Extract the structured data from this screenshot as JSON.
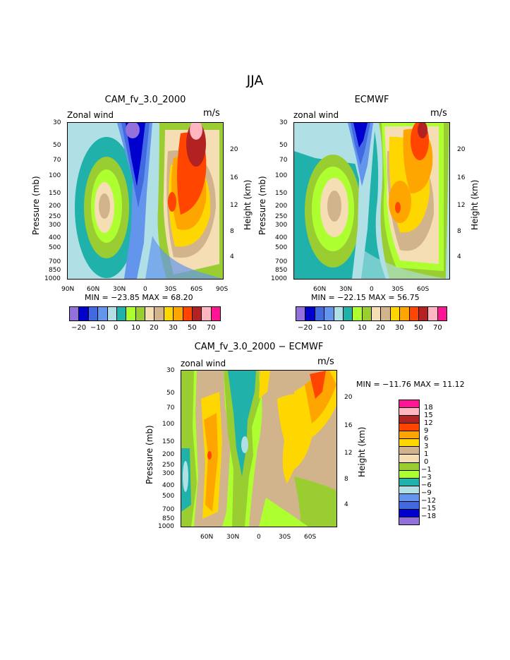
{
  "title": "JJA",
  "colors": {
    "abs": [
      "#9370db",
      "#0000cd",
      "#4169e1",
      "#6495ed",
      "#b0e0e6",
      "#20b2aa",
      "#adff2f",
      "#9acd32",
      "#f5deb3",
      "#d2b48c",
      "#ffd700",
      "#ffa500",
      "#ff4500",
      "#b22222",
      "#ffb6c1",
      "#ff1493"
    ],
    "diff": [
      "#ff1493",
      "#ffb6c1",
      "#b22222",
      "#ff4500",
      "#ffa500",
      "#ffd700",
      "#d2b48c",
      "#f5deb3",
      "#9acd32",
      "#adff2f",
      "#20b2aa",
      "#b0e0e6",
      "#6495ed",
      "#4169e1",
      "#0000cd",
      "#9370db"
    ]
  },
  "chart_data": [
    {
      "type": "heatmap",
      "title": "CAM_fv_3.0_2000",
      "left_label": "Zonal wind",
      "right_label": "m/s",
      "ylabel": "Pressure (mb)",
      "ylabel_right": "Height (km)",
      "y_ticks": [
        "30",
        "50",
        "70",
        "100",
        "150",
        "200",
        "250",
        "300",
        "400",
        "500",
        "700",
        "850",
        "1000"
      ],
      "y_ticks_right": [
        "20",
        "16",
        "12",
        "8",
        "4"
      ],
      "x_ticks": [
        "90N",
        "60N",
        "30N",
        "0",
        "30S",
        "60S",
        "90S"
      ],
      "stats": "MIN = −23.85   MAX =  68.20",
      "colorbar_labels": [
        "−20",
        "−10",
        "0",
        "10",
        "20",
        "30",
        "50",
        "70"
      ]
    },
    {
      "type": "heatmap",
      "title": "ECMWF",
      "left_label": "zonal wind",
      "right_label": "m/s",
      "ylabel": "Pressure (mb)",
      "ylabel_right": "Height (km)",
      "y_ticks": [
        "30",
        "50",
        "70",
        "100",
        "150",
        "200",
        "250",
        "300",
        "400",
        "500",
        "700",
        "850",
        "1000"
      ],
      "y_ticks_right": [
        "20",
        "16",
        "12",
        "8",
        "4"
      ],
      "x_ticks": [
        "60N",
        "30N",
        "0",
        "30S",
        "60S"
      ],
      "stats": "MIN = −22.15   MAX =  56.75",
      "colorbar_labels": [
        "−20",
        "−10",
        "0",
        "10",
        "20",
        "30",
        "50",
        "70"
      ]
    },
    {
      "type": "heatmap",
      "title": "CAM_fv_3.0_2000 − ECMWF",
      "left_label": "zonal wind",
      "right_label": "m/s",
      "ylabel": "Pressure (mb)",
      "ylabel_right": "Height (km)",
      "y_ticks": [
        "30",
        "50",
        "70",
        "100",
        "150",
        "200",
        "250",
        "300",
        "400",
        "500",
        "700",
        "850",
        "1000"
      ],
      "y_ticks_right": [
        "20",
        "16",
        "12",
        "8",
        "4"
      ],
      "x_ticks": [
        "60N",
        "30N",
        "0",
        "30S",
        "60S"
      ],
      "stats": "MIN = −11.76   MAX =  11.12",
      "colorbar_labels": [
        "18",
        "15",
        "12",
        "9",
        "6",
        "3",
        "1",
        "0",
        "−1",
        "−3",
        "−6",
        "−9",
        "−12",
        "−15",
        "−18"
      ]
    }
  ]
}
